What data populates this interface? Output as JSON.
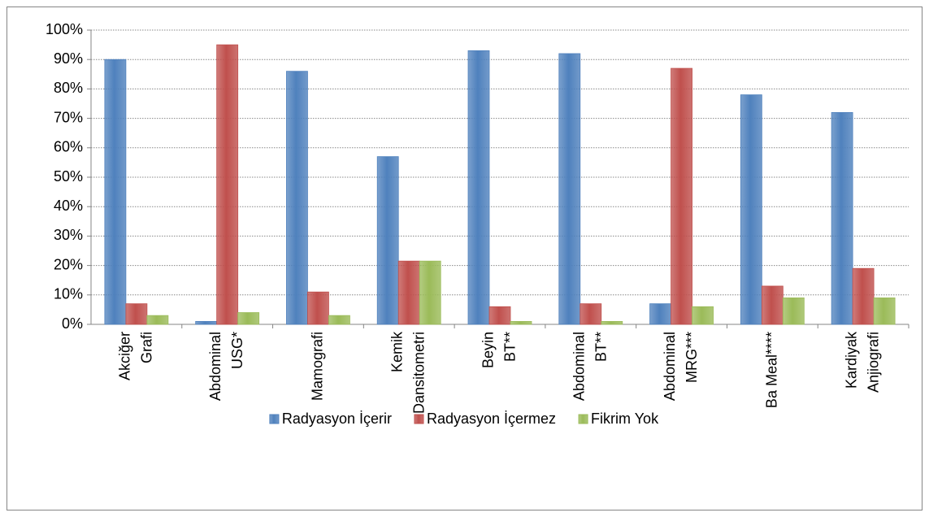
{
  "chart_data": {
    "type": "bar",
    "categories": [
      "Akciğer\nGrafi",
      "Abdominal\nUSG*",
      "Mamografi",
      "Kemik\nDansitometri",
      "Beyin\nBT**",
      "Abdominal\nBT**",
      "Abdominal\nMRG***",
      "Ba Meal****",
      "Kardiyak\nAnjiografi"
    ],
    "series": [
      {
        "name": "Radyasyon İçerir",
        "color": "#4f81bd",
        "values": [
          90,
          1,
          86,
          57,
          93,
          92,
          7,
          78,
          72
        ]
      },
      {
        "name": "Radyasyon İçermez",
        "color": "#c0504d",
        "values": [
          7,
          95,
          11,
          21.5,
          6,
          7,
          87,
          13,
          19
        ]
      },
      {
        "name": "Fikrim Yok",
        "color": "#9bbb59",
        "values": [
          3,
          4,
          3,
          21.5,
          1,
          1,
          6,
          9,
          9
        ]
      }
    ],
    "ylim": [
      0,
      100
    ],
    "yticks": [
      {
        "value": 0,
        "label": "0%"
      },
      {
        "value": 10,
        "label": "10%"
      },
      {
        "value": 20,
        "label": "20%"
      },
      {
        "value": 30,
        "label": "30%"
      },
      {
        "value": 40,
        "label": "40%"
      },
      {
        "value": 50,
        "label": "50%"
      },
      {
        "value": 60,
        "label": "60%"
      },
      {
        "value": 70,
        "label": "70%"
      },
      {
        "value": 80,
        "label": "80%"
      },
      {
        "value": 90,
        "label": "90%"
      },
      {
        "value": 100,
        "label": "100%"
      }
    ],
    "grid": true,
    "legend": "bottom"
  }
}
